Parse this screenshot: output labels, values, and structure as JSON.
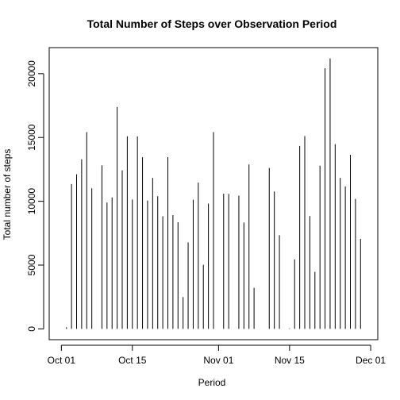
{
  "chart_data": {
    "type": "bar",
    "title": "Total Number of Steps over Observation Period",
    "x_label": "Period",
    "y_label": "Total number of steps",
    "x": [
      0,
      1,
      2,
      3,
      4,
      5,
      6,
      7,
      8,
      9,
      10,
      11,
      12,
      13,
      14,
      15,
      16,
      17,
      18,
      19,
      20,
      21,
      22,
      23,
      24,
      25,
      26,
      27,
      28,
      29,
      30,
      31,
      32,
      33,
      34,
      35,
      36,
      37,
      38,
      39,
      40,
      41,
      42,
      43,
      44,
      45,
      46,
      47,
      48,
      49,
      50,
      51,
      52,
      53,
      54,
      55,
      56,
      57,
      58,
      59,
      60
    ],
    "values": [
      null,
      126,
      11352,
      12116,
      13294,
      15420,
      11015,
      null,
      12811,
      9900,
      10304,
      17382,
      12426,
      15098,
      10139,
      15084,
      13452,
      10056,
      11829,
      10395,
      8821,
      13460,
      8918,
      8355,
      2492,
      6778,
      10119,
      11458,
      5018,
      9819,
      15414,
      null,
      10600,
      10571,
      null,
      10439,
      8334,
      12883,
      3219,
      null,
      null,
      12608,
      10765,
      7336,
      null,
      41,
      5441,
      14339,
      15110,
      8841,
      4472,
      12787,
      20427,
      21194,
      14478,
      11834,
      11162,
      13646,
      10183,
      7047,
      null
    ],
    "color": "#000000",
    "xlim": [
      -2.4,
      62.4
    ],
    "xticks": [
      {
        "value": 0,
        "label": "Oct 01"
      },
      {
        "value": 14,
        "label": "Oct 15"
      },
      {
        "value": 31,
        "label": "Nov 01"
      },
      {
        "value": 45,
        "label": "Nov 15"
      },
      {
        "value": 61,
        "label": "Dec 01"
      }
    ],
    "ylim": [
      -848,
      22042
    ],
    "yticks": [
      0,
      5000,
      10000,
      15000,
      20000
    ]
  }
}
